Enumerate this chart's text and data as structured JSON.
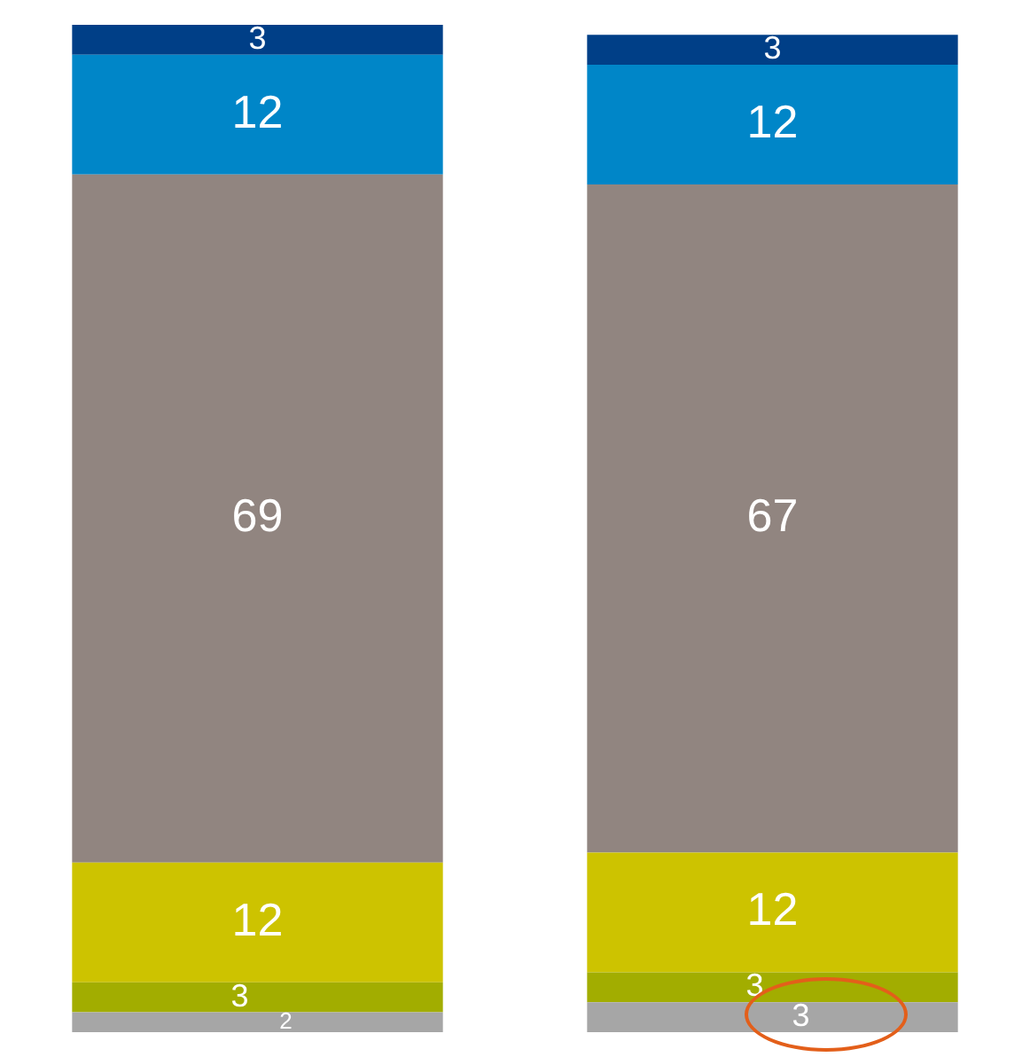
{
  "chart_data": {
    "type": "bar",
    "stacked": true,
    "categories": [
      null,
      null
    ],
    "ylim": [
      0,
      101
    ],
    "legend": false,
    "data_labels": true,
    "series": [
      {
        "color": "#a6a6a6",
        "values": [
          2,
          3
        ]
      },
      {
        "color": "#a2ad00",
        "values": [
          3,
          3
        ]
      },
      {
        "color": "#cdc300",
        "values": [
          12,
          12
        ]
      },
      {
        "color": "#918580",
        "values": [
          69,
          67
        ]
      },
      {
        "color": "#0086c8",
        "values": [
          12,
          12
        ]
      },
      {
        "color": "#003f87",
        "values": [
          3,
          3
        ]
      }
    ]
  }
}
